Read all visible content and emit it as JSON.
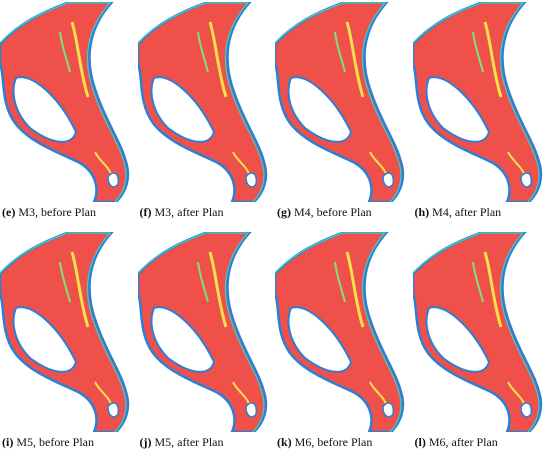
{
  "panels": [
    {
      "label": "(e)",
      "caption": "M3, before Plan"
    },
    {
      "label": "(f)",
      "caption": "M3, after Plan"
    },
    {
      "label": "(g)",
      "caption": "M4, before Plan"
    },
    {
      "label": "(h)",
      "caption": "M4, after Plan"
    },
    {
      "label": "(i)",
      "caption": "M5, before Plan"
    },
    {
      "label": "(j)",
      "caption": "M5, after Plan"
    },
    {
      "label": "(k)",
      "caption": "M6, before Plan"
    },
    {
      "label": "(l)",
      "caption": "M6, after Plan"
    }
  ]
}
